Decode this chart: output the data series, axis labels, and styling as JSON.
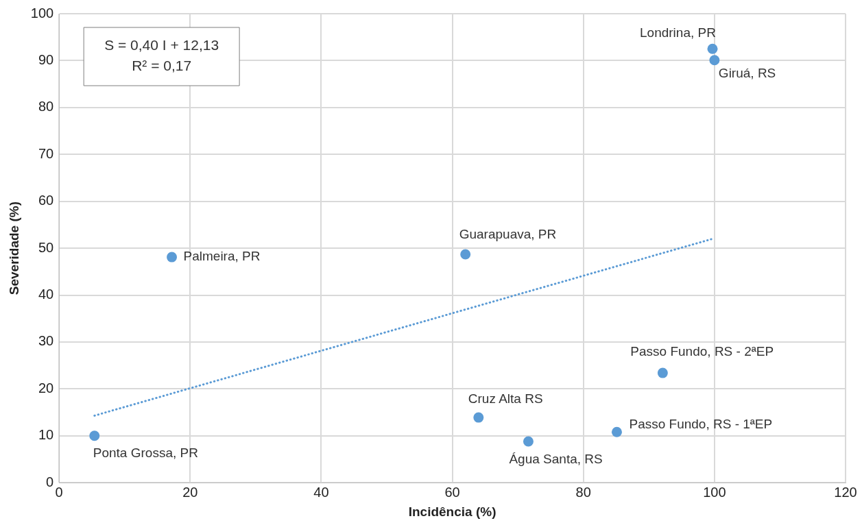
{
  "chart_data": {
    "type": "scatter",
    "xlabel": "Incidência (%)",
    "ylabel": "Severidade (%)",
    "xlim": [
      0,
      120
    ],
    "xticks": [
      0,
      20,
      40,
      60,
      80,
      100,
      120
    ],
    "ylim": [
      0,
      100
    ],
    "yticks": [
      0,
      10,
      20,
      30,
      40,
      50,
      60,
      70,
      80,
      90,
      100
    ],
    "grid": true,
    "legend": false,
    "marker": "circle",
    "series": [
      {
        "type": "scatter",
        "color": "#5b9bd5",
        "x": [
          5.4,
          17.2,
          62.0,
          64.0,
          71.6,
          85.1,
          92.1,
          99.7,
          100.0
        ],
        "values": [
          10.0,
          48.1,
          48.7,
          13.9,
          8.8,
          10.8,
          23.4,
          92.5,
          90.1
        ]
      },
      {
        "type": "line",
        "color": "#5b9bd5",
        "line_style": "dotted",
        "marker": "none",
        "x": [
          5.4,
          99.7
        ],
        "values": [
          14.3,
          52.0
        ]
      }
    ],
    "annotations": [
      "S = 0,40 I + 12,13",
      "R² = 0,17",
      {
        "text": "Ponta Grossa, PR",
        "x": 5.4,
        "y": 10.0
      },
      {
        "text": "Palmeira, PR",
        "x": 17.2,
        "y": 48.1
      },
      {
        "text": "Guarapuava, PR",
        "x": 62.0,
        "y": 48.7
      },
      {
        "text": "Cruz Alta RS",
        "x": 64.0,
        "y": 13.9
      },
      {
        "text": "Água Santa, RS",
        "x": 71.6,
        "y": 8.8
      },
      {
        "text": "Passo Fundo, RS - 1ªEP",
        "x": 85.1,
        "y": 10.8
      },
      {
        "text": "Passo Fundo, RS - 2ªEP",
        "x": 92.1,
        "y": 23.4
      },
      {
        "text": "Londrina, PR",
        "x": 99.7,
        "y": 92.5
      },
      {
        "text": "Giruá, RS",
        "x": 100.0,
        "y": 90.1
      }
    ]
  }
}
